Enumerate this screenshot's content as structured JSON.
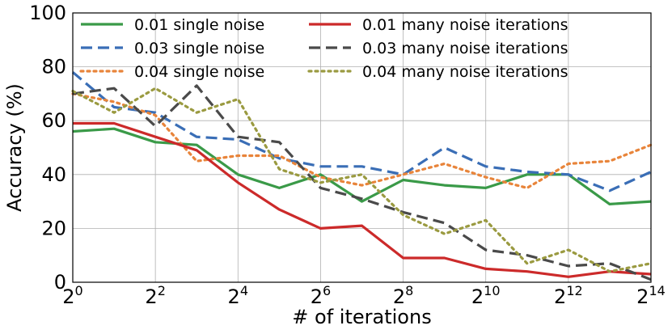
{
  "chart_data": {
    "type": "line",
    "title": "",
    "xlabel": "# of iterations",
    "ylabel": "Accuracy (%)",
    "ylim": [
      0,
      100
    ],
    "xlim": [
      0,
      14
    ],
    "grid": true,
    "legend_position": "top",
    "x": [
      0,
      1,
      2,
      3,
      4,
      5,
      6,
      7,
      8,
      9,
      10,
      11,
      12,
      13,
      14
    ],
    "x_ticks": [
      {
        "value": 0,
        "base": "2",
        "exp": "0"
      },
      {
        "value": 2,
        "base": "2",
        "exp": "2"
      },
      {
        "value": 4,
        "base": "2",
        "exp": "4"
      },
      {
        "value": 6,
        "base": "2",
        "exp": "6"
      },
      {
        "value": 8,
        "base": "2",
        "exp": "8"
      },
      {
        "value": 10,
        "base": "2",
        "exp": "10"
      },
      {
        "value": 12,
        "base": "2",
        "exp": "12"
      },
      {
        "value": 14,
        "base": "2",
        "exp": "14"
      }
    ],
    "y_ticks": [
      "0",
      "20",
      "40",
      "60",
      "80",
      "100"
    ],
    "series": [
      {
        "name": "0.01 single noise",
        "color": "#3a9a48",
        "style": "solid",
        "values": [
          56,
          57,
          52,
          51,
          40,
          35,
          40,
          30,
          38,
          36,
          35,
          40,
          40,
          29,
          30
        ]
      },
      {
        "name": "0.03 single noise",
        "color": "#3a6eb6",
        "style": "dashed",
        "values": [
          78,
          65,
          63,
          54,
          53,
          46,
          43,
          43,
          40,
          50,
          43,
          41,
          40,
          34,
          41
        ]
      },
      {
        "name": "0.04 single noise",
        "color": "#e8843a",
        "style": "dotted",
        "values": [
          70,
          67,
          62,
          45,
          47,
          47,
          39,
          36,
          40,
          44,
          39,
          35,
          44,
          45,
          51
        ]
      },
      {
        "name": "0.01 many noise iterations",
        "color": "#cc2a2a",
        "style": "solid",
        "values": [
          59,
          59,
          54,
          49,
          37,
          27,
          20,
          21,
          9,
          9,
          5,
          4,
          2,
          4,
          3
        ]
      },
      {
        "name": "0.03 many noise iterations",
        "color": "#4a4a4a",
        "style": "dashed",
        "values": [
          70,
          72,
          58,
          73,
          54,
          52,
          35,
          31,
          26,
          22,
          12,
          10,
          6,
          7,
          1
        ]
      },
      {
        "name": "0.04 many noise iterations",
        "color": "#9a9a40",
        "style": "dotted",
        "values": [
          71,
          63,
          72,
          63,
          68,
          42,
          37,
          40,
          25,
          18,
          23,
          7,
          12,
          4,
          7
        ]
      }
    ]
  }
}
